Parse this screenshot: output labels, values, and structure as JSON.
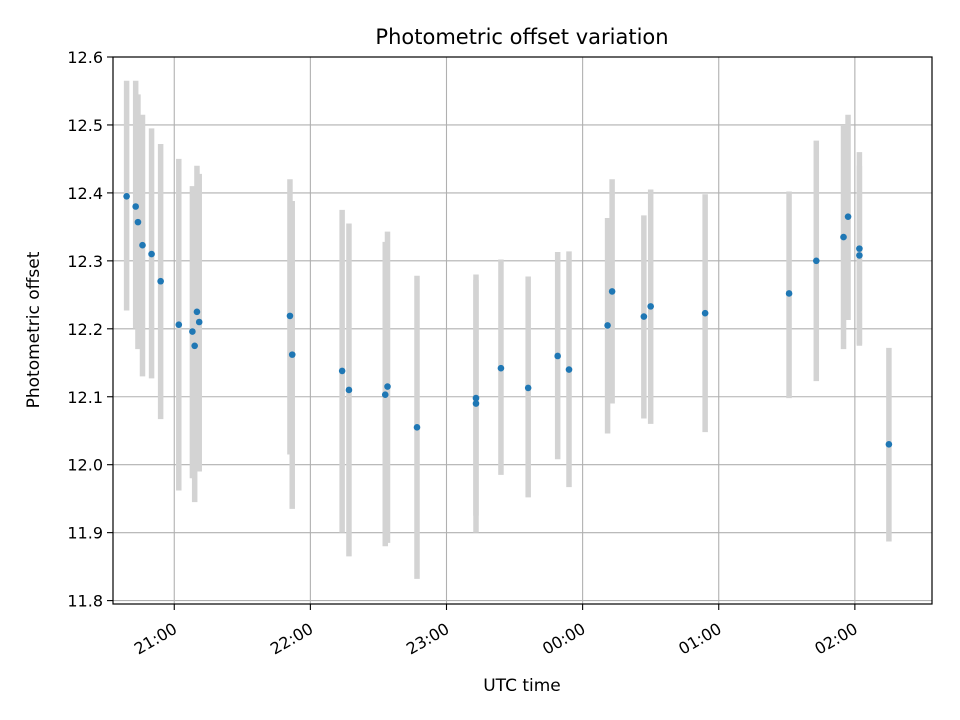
{
  "chart_data": {
    "type": "scatter",
    "title": "Photometric offset variation",
    "xlabel": "UTC time",
    "ylabel": "Photometric offset",
    "xlim": [
      "20:33",
      "02:34"
    ],
    "ylim": [
      11.795,
      12.6
    ],
    "x_ticks": [
      "21:00",
      "22:00",
      "23:00",
      "00:00",
      "01:00",
      "02:00"
    ],
    "y_ticks": [
      11.8,
      11.9,
      12.0,
      12.1,
      12.2,
      12.3,
      12.4,
      12.5,
      12.6
    ],
    "grid": true,
    "colors": {
      "points": "#1f77b4",
      "errorbars": "#d3d3d3",
      "grid": "#b0b0b0"
    },
    "series": [
      {
        "points": [
          {
            "x": "20:39",
            "y": 12.395,
            "low": 12.227,
            "high": 12.565
          },
          {
            "x": "20:43",
            "y": 12.38,
            "low": 12.2,
            "high": 12.565
          },
          {
            "x": "20:44",
            "y": 12.357,
            "low": 12.17,
            "high": 12.545
          },
          {
            "x": "20:46",
            "y": 12.323,
            "low": 12.13,
            "high": 12.515
          },
          {
            "x": "20:50",
            "y": 12.31,
            "low": 12.127,
            "high": 12.495
          },
          {
            "x": "20:54",
            "y": 12.27,
            "low": 12.067,
            "high": 12.472
          },
          {
            "x": "21:02",
            "y": 12.206,
            "low": 11.962,
            "high": 12.45
          },
          {
            "x": "21:08",
            "y": 12.196,
            "low": 11.98,
            "high": 12.41
          },
          {
            "x": "21:09",
            "y": 12.175,
            "low": 11.945,
            "high": 12.405
          },
          {
            "x": "21:10",
            "y": 12.225,
            "low": 12.01,
            "high": 12.44
          },
          {
            "x": "21:11",
            "y": 12.21,
            "low": 11.99,
            "high": 12.428
          },
          {
            "x": "21:51",
            "y": 12.219,
            "low": 12.015,
            "high": 12.42
          },
          {
            "x": "21:52",
            "y": 12.162,
            "low": 11.935,
            "high": 12.388
          },
          {
            "x": "22:14",
            "y": 12.138,
            "low": 11.9,
            "high": 12.375
          },
          {
            "x": "22:17",
            "y": 12.11,
            "low": 11.865,
            "high": 12.355
          },
          {
            "x": "22:33",
            "y": 12.103,
            "low": 11.88,
            "high": 12.328
          },
          {
            "x": "22:34",
            "y": 12.115,
            "low": 11.885,
            "high": 12.343
          },
          {
            "x": "22:47",
            "y": 12.055,
            "low": 11.832,
            "high": 12.278
          },
          {
            "x": "23:13",
            "y": 12.09,
            "low": 11.9,
            "high": 12.28
          },
          {
            "x": "23:13",
            "y": 12.098,
            "low": 11.925,
            "high": 12.272
          },
          {
            "x": "23:24",
            "y": 12.142,
            "low": 11.985,
            "high": 12.302
          },
          {
            "x": "23:36",
            "y": 12.113,
            "low": 11.952,
            "high": 12.277
          },
          {
            "x": "23:49",
            "y": 12.16,
            "low": 12.008,
            "high": 12.313
          },
          {
            "x": "23:54",
            "y": 12.14,
            "low": 11.967,
            "high": 12.314
          },
          {
            "x": "00:11",
            "y": 12.205,
            "low": 12.046,
            "high": 12.363
          },
          {
            "x": "00:13",
            "y": 12.255,
            "low": 12.09,
            "high": 12.42
          },
          {
            "x": "00:27",
            "y": 12.218,
            "low": 12.068,
            "high": 12.367
          },
          {
            "x": "00:30",
            "y": 12.233,
            "low": 12.06,
            "high": 12.405
          },
          {
            "x": "00:54",
            "y": 12.223,
            "low": 12.048,
            "high": 12.398
          },
          {
            "x": "01:31",
            "y": 12.252,
            "low": 12.098,
            "high": 12.402
          },
          {
            "x": "01:43",
            "y": 12.3,
            "low": 12.123,
            "high": 12.477
          },
          {
            "x": "01:55",
            "y": 12.335,
            "low": 12.17,
            "high": 12.5
          },
          {
            "x": "01:57",
            "y": 12.365,
            "low": 12.213,
            "high": 12.515
          },
          {
            "x": "02:02",
            "y": 12.308,
            "low": 12.175,
            "high": 12.44
          },
          {
            "x": "02:02",
            "y": 12.318,
            "low": 12.177,
            "high": 12.46
          },
          {
            "x": "02:15",
            "y": 12.03,
            "low": 11.887,
            "high": 12.172
          }
        ]
      }
    ]
  }
}
